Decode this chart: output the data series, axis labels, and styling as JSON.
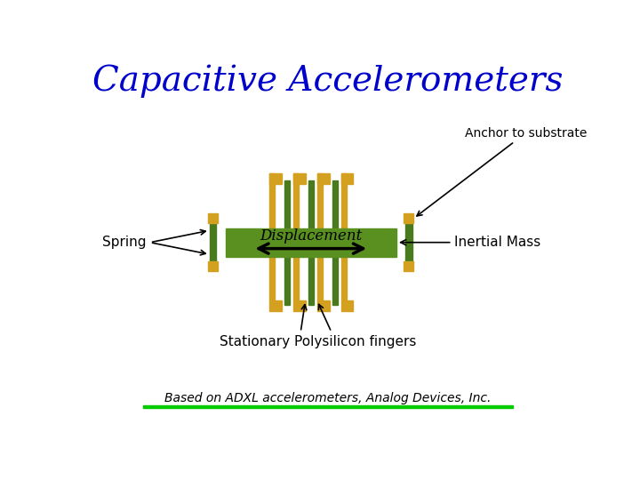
{
  "title": "Capacitive Accelerometers",
  "title_color": "#0000CC",
  "title_fontsize": 28,
  "bg_color": "#FFFFFF",
  "gold_color": "#D4A020",
  "green_color": "#4A7A1E",
  "mid_green": "#5A9020",
  "label_anchor": "Anchor to substrate",
  "label_spring": "Spring",
  "label_displacement": "Displacement",
  "label_inertial": "Inertial Mass",
  "label_stationary": "Stationary Polysilicon fingers",
  "label_based": "Based on ADXL accelerometers, Analog Devices, Inc.",
  "line_color": "#00CC00"
}
